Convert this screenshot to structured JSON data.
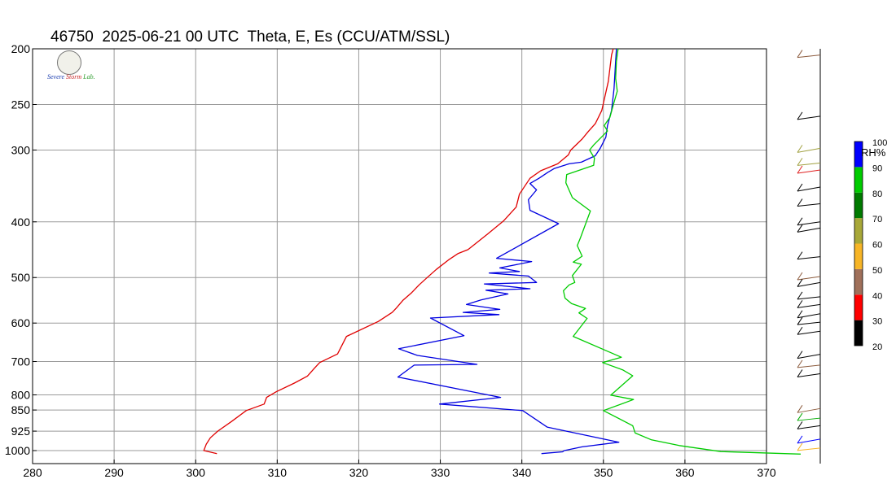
{
  "header": {
    "title": "46750  2025-06-21 00 UTC  Theta, E, Es (CCU/ATM/SSL)"
  },
  "logo": {
    "word1": "Severe",
    "word2": "Storm",
    "word3": "Lab."
  },
  "colors": {
    "theta": "#e00000",
    "theta_e": "#0000e0",
    "theta_es": "#00cc00",
    "grid": "#9a9a9a"
  },
  "chart_data": {
    "type": "line",
    "title": "46750  2025-06-21 00 UTC  Theta, E, Es (CCU/ATM/SSL)",
    "xlabel": "",
    "ylabel": "",
    "x_axis": {
      "range": [
        280,
        370
      ],
      "ticks": [
        280,
        290,
        300,
        310,
        320,
        330,
        340,
        350,
        360,
        370
      ]
    },
    "y_axis": {
      "scale": "log-pressure",
      "range": [
        1020,
        200
      ],
      "ticks": [
        200,
        250,
        300,
        400,
        500,
        600,
        700,
        800,
        850,
        925,
        1000
      ]
    },
    "grid": true,
    "series": [
      {
        "key": "theta",
        "color": "#e00000",
        "points": [
          [
            302.6,
            1012
          ],
          [
            301.0,
            1000
          ],
          [
            301.3,
            975
          ],
          [
            301.8,
            950
          ],
          [
            302.7,
            925
          ],
          [
            304.4,
            890
          ],
          [
            306.2,
            852
          ],
          [
            308.4,
            830
          ],
          [
            308.7,
            808
          ],
          [
            309.9,
            790
          ],
          [
            312.1,
            763
          ],
          [
            313.7,
            742
          ],
          [
            314.6,
            718
          ],
          [
            315.2,
            703
          ],
          [
            317.4,
            679
          ],
          [
            318.5,
            633
          ],
          [
            322.4,
            596
          ],
          [
            324.1,
            575
          ],
          [
            324.6,
            565
          ],
          [
            325.4,
            548
          ],
          [
            326.5,
            531
          ],
          [
            327.4,
            515
          ],
          [
            328.4,
            500
          ],
          [
            329.5,
            484
          ],
          [
            331.0,
            466
          ],
          [
            332.2,
            454
          ],
          [
            333.4,
            447
          ],
          [
            335.8,
            420
          ],
          [
            337.8,
            398
          ],
          [
            339.3,
            377
          ],
          [
            339.7,
            358
          ],
          [
            341.0,
            336
          ],
          [
            342.3,
            326
          ],
          [
            344.4,
            317
          ],
          [
            345.7,
            306
          ],
          [
            346.0,
            300
          ],
          [
            347.4,
            287
          ],
          [
            348.1,
            279
          ],
          [
            349.0,
            270
          ],
          [
            349.8,
            256
          ],
          [
            350.6,
            228
          ],
          [
            351.0,
            205
          ],
          [
            351.2,
            200
          ]
        ]
      },
      {
        "key": "theta_e",
        "color": "#0000e0",
        "points": [
          [
            342.4,
            1012
          ],
          [
            345.0,
            1005
          ],
          [
            345.2,
            1000
          ],
          [
            347.4,
            985
          ],
          [
            351.9,
            967
          ],
          [
            343.1,
            910
          ],
          [
            340.1,
            852
          ],
          [
            329.9,
            830
          ],
          [
            337.4,
            808
          ],
          [
            324.8,
            745
          ],
          [
            326.8,
            710
          ],
          [
            334.5,
            708
          ],
          [
            327.2,
            683
          ],
          [
            324.9,
            665
          ],
          [
            332.9,
            631
          ],
          [
            328.8,
            588
          ],
          [
            337.2,
            580
          ],
          [
            332.8,
            575
          ],
          [
            334.7,
            572
          ],
          [
            337.3,
            568
          ],
          [
            333.2,
            557
          ],
          [
            335.0,
            547
          ],
          [
            338.3,
            534
          ],
          [
            335.6,
            526
          ],
          [
            341.0,
            523
          ],
          [
            335.4,
            513
          ],
          [
            341.8,
            510
          ],
          [
            340.8,
            497
          ],
          [
            336.0,
            491
          ],
          [
            339.7,
            488
          ],
          [
            337.3,
            481
          ],
          [
            341.2,
            469
          ],
          [
            336.9,
            463
          ],
          [
            344.5,
            403
          ],
          [
            341.0,
            382
          ],
          [
            340.8,
            366
          ],
          [
            341.8,
            352
          ],
          [
            341.0,
            343
          ],
          [
            342.1,
            336
          ],
          [
            343.2,
            328
          ],
          [
            344.0,
            323
          ],
          [
            345.8,
            317
          ],
          [
            347.3,
            315
          ],
          [
            349.0,
            307
          ],
          [
            349.6,
            298
          ],
          [
            350.3,
            285
          ],
          [
            350.5,
            272
          ],
          [
            351.0,
            256
          ],
          [
            351.3,
            235
          ],
          [
            351.5,
            210
          ],
          [
            351.6,
            200
          ]
        ]
      },
      {
        "key": "theta_es",
        "color": "#00cc00",
        "points": [
          [
            374.2,
            1014
          ],
          [
            364.4,
            1004
          ],
          [
            359.3,
            980
          ],
          [
            355.9,
            958
          ],
          [
            353.9,
            932
          ],
          [
            353.6,
            905
          ],
          [
            350.0,
            852
          ],
          [
            353.7,
            815
          ],
          [
            350.9,
            801
          ],
          [
            353.6,
            741
          ],
          [
            352.4,
            724
          ],
          [
            349.9,
            703
          ],
          [
            352.2,
            688
          ],
          [
            346.3,
            633
          ],
          [
            348.0,
            589
          ],
          [
            347.0,
            576
          ],
          [
            347.8,
            566
          ],
          [
            346.1,
            555
          ],
          [
            345.3,
            543
          ],
          [
            345.1,
            527
          ],
          [
            345.8,
            515
          ],
          [
            346.5,
            510
          ],
          [
            346.2,
            496
          ],
          [
            347.3,
            474
          ],
          [
            346.3,
            470
          ],
          [
            347.4,
            459
          ],
          [
            346.8,
            440
          ],
          [
            347.2,
            426
          ],
          [
            348.4,
            383
          ],
          [
            346.2,
            363
          ],
          [
            345.4,
            342
          ],
          [
            345.5,
            331
          ],
          [
            348.8,
            319
          ],
          [
            348.9,
            310
          ],
          [
            348.3,
            300
          ],
          [
            348.8,
            294
          ],
          [
            350.5,
            278
          ],
          [
            350.1,
            272
          ],
          [
            350.8,
            263
          ],
          [
            351.3,
            248
          ],
          [
            351.7,
            237
          ],
          [
            351.5,
            225
          ],
          [
            351.6,
            210
          ],
          [
            351.8,
            200
          ]
        ]
      }
    ],
    "colorbar": {
      "label": "RH%",
      "ticks": [
        20,
        30,
        40,
        50,
        60,
        70,
        80,
        90,
        100
      ],
      "colors": [
        "#000000",
        "#ff0000",
        "#a0705a",
        "#f7b526",
        "#a8a838",
        "#007a00",
        "#00cc00",
        "#0000ff"
      ]
    },
    "wind_barbs": [
      {
        "p": 205,
        "color": "#8b5a3c"
      },
      {
        "p": 262,
        "color": "#000000"
      },
      {
        "p": 298,
        "color": "#a0a040"
      },
      {
        "p": 316,
        "color": "#a0a040"
      },
      {
        "p": 325,
        "color": "#e02020"
      },
      {
        "p": 348,
        "color": "#000000"
      },
      {
        "p": 372,
        "color": "#000000"
      },
      {
        "p": 400,
        "color": "#000000"
      },
      {
        "p": 410,
        "color": "#000000"
      },
      {
        "p": 460,
        "color": "#000000"
      },
      {
        "p": 498,
        "color": "#8b5a3c"
      },
      {
        "p": 510,
        "color": "#000000"
      },
      {
        "p": 540,
        "color": "#000000"
      },
      {
        "p": 557,
        "color": "#000000"
      },
      {
        "p": 578,
        "color": "#000000"
      },
      {
        "p": 598,
        "color": "#000000"
      },
      {
        "p": 620,
        "color": "#000000"
      },
      {
        "p": 680,
        "color": "#000000"
      },
      {
        "p": 710,
        "color": "#8b5a3c"
      },
      {
        "p": 735,
        "color": "#000000"
      },
      {
        "p": 845,
        "color": "#8b5a3c"
      },
      {
        "p": 878,
        "color": "#00aa00"
      },
      {
        "p": 905,
        "color": "#000000"
      },
      {
        "p": 955,
        "color": "#0000ff"
      },
      {
        "p": 990,
        "color": "#f7b526"
      }
    ]
  }
}
